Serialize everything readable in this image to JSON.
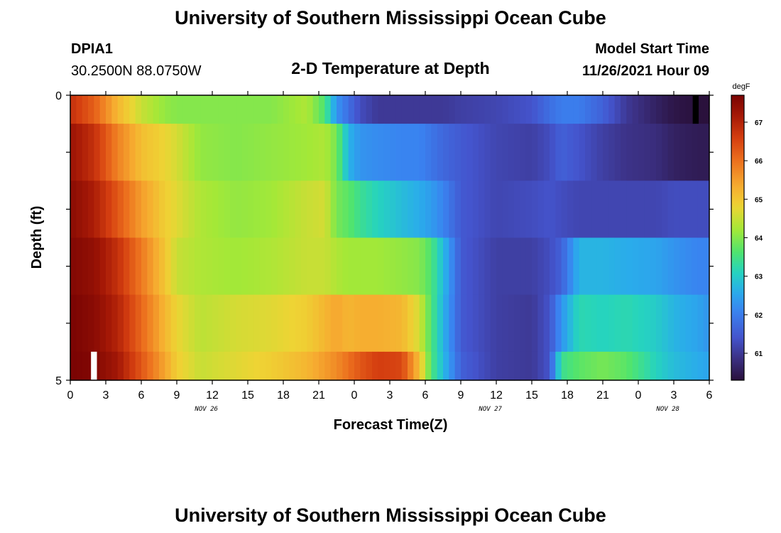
{
  "header": {
    "title": "University of Southern Mississippi Ocean Cube",
    "station": "DPIA1",
    "coords": "30.2500N  88.0750W",
    "plot_title": "2-D Temperature at Depth",
    "start_label": "Model Start Time",
    "start_time": "11/26/2021 Hour 09"
  },
  "footer": {
    "title": "University of Southern Mississippi Ocean Cube"
  },
  "chart_data": {
    "type": "heatmap",
    "title": "2-D Temperature at Depth",
    "xlabel": "Forecast Time(Z)",
    "ylabel": "Depth (ft)",
    "x_hours": [
      0,
      3,
      6,
      9,
      12,
      15,
      18,
      21,
      24,
      27,
      30,
      33,
      36,
      39,
      42,
      45,
      48,
      51,
      54
    ],
    "x_tick_labels": [
      "0",
      "3",
      "6",
      "9",
      "12",
      "15",
      "18",
      "21",
      "0",
      "3",
      "6",
      "9",
      "12",
      "15",
      "18",
      "21",
      "0",
      "3",
      "6"
    ],
    "date_labels": [
      {
        "hour": 11.5,
        "text": "NOV 26"
      },
      {
        "hour": 35.5,
        "text": "NOV 27"
      },
      {
        "hour": 50.5,
        "text": "NOV 28"
      }
    ],
    "y_tick_labels": [
      "0",
      "5"
    ],
    "ylim": [
      0,
      5
    ],
    "xlim": [
      0,
      54
    ],
    "depth_layers": [
      0,
      1,
      2,
      3,
      4,
      5
    ],
    "profile_hours": [
      0,
      2,
      4,
      6,
      8,
      9,
      11,
      14,
      17,
      20,
      21.5,
      22.5,
      23.5,
      24.5,
      26,
      28,
      29.5,
      30.5,
      31.5,
      33,
      36,
      39,
      40.5,
      41.5,
      43,
      45,
      47,
      49.5,
      51,
      53,
      54
    ],
    "temperature_degF": [
      [
        66.8,
        66.2,
        65.2,
        64.5,
        64.1,
        64.0,
        64.0,
        64.0,
        64.0,
        64.3,
        63.6,
        62.3,
        61.8,
        61.3,
        61.0,
        61.0,
        61.0,
        61.0,
        61.0,
        61.1,
        61.2,
        61.4,
        61.8,
        62.0,
        62.0,
        61.6,
        61.0,
        60.6,
        60.4,
        60.3,
        60.3
      ],
      [
        67.3,
        66.8,
        65.8,
        65.1,
        64.8,
        64.6,
        64.1,
        64.0,
        64.1,
        64.2,
        64.3,
        63.9,
        62.7,
        62.3,
        62.2,
        62.1,
        62.1,
        61.9,
        61.7,
        61.5,
        61.2,
        61.1,
        61.3,
        61.6,
        61.4,
        61.1,
        60.9,
        60.8,
        60.6,
        60.5,
        60.5
      ],
      [
        67.5,
        67.1,
        66.3,
        65.5,
        64.9,
        64.7,
        64.3,
        64.1,
        64.2,
        64.5,
        64.6,
        63.9,
        63.7,
        63.4,
        63.1,
        62.8,
        62.6,
        62.4,
        62.1,
        61.5,
        61.2,
        61.3,
        61.4,
        61.3,
        61.2,
        61.2,
        61.2,
        61.2,
        61.3,
        61.3,
        61.3
      ],
      [
        67.6,
        67.4,
        66.8,
        65.9,
        65.0,
        64.5,
        64.3,
        64.2,
        64.3,
        64.5,
        64.5,
        64.3,
        64.2,
        64.2,
        64.2,
        64.1,
        64.0,
        63.6,
        62.8,
        61.5,
        61.1,
        61.1,
        61.3,
        61.6,
        62.7,
        62.7,
        62.6,
        62.5,
        62.3,
        62.1,
        62.1
      ],
      [
        67.7,
        67.5,
        67.0,
        66.1,
        65.2,
        64.8,
        64.4,
        64.6,
        64.7,
        64.9,
        65.2,
        65.4,
        65.2,
        65.3,
        65.3,
        65.2,
        64.6,
        63.6,
        62.7,
        61.5,
        61.1,
        61.0,
        61.4,
        62.3,
        63.2,
        63.1,
        63.2,
        63.0,
        62.7,
        62.5,
        62.3
      ],
      [
        67.7,
        67.6,
        67.2,
        66.3,
        65.4,
        64.9,
        64.5,
        64.7,
        64.9,
        65.2,
        65.5,
        65.7,
        66.0,
        66.3,
        66.6,
        66.5,
        65.1,
        63.6,
        62.8,
        61.6,
        61.1,
        61.0,
        61.4,
        63.4,
        63.7,
        63.9,
        63.7,
        63.1,
        62.8,
        62.6,
        62.5
      ]
    ],
    "annotations": [
      {
        "type": "white-bar",
        "hour_start": 1.75,
        "hour_end": 2.25,
        "depth_start": 4.5,
        "depth_end": 5
      },
      {
        "type": "black-bar",
        "hour_start": 52.6,
        "hour_end": 53.1,
        "depth_start": 0,
        "depth_end": 0.5
      }
    ],
    "colorbar": {
      "unit": "degF",
      "min": 60.3,
      "max": 67.7,
      "ticks": [
        "61",
        "62",
        "63",
        "64",
        "65",
        "66",
        "67"
      ]
    }
  }
}
